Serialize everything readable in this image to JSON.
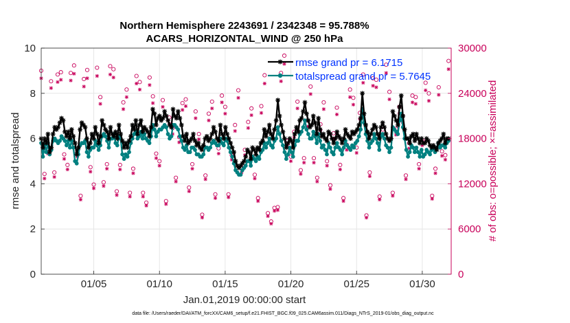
{
  "chart_data": {
    "type": "line",
    "title_line1": "Northern Hemisphere 2243691 / 2342348 = 95.788%",
    "title_line2": "ACARS_HORIZONTAL_WIND @ 250 hPa",
    "xlabel": "Jan.01,2019 00:00:00 start",
    "ylabel_left": "rmse and totalspread",
    "ylabel_right": "# of obs: o=possible; ×=assimilated",
    "xlim": [
      1,
      32.2
    ],
    "ylim_left": [
      0,
      10
    ],
    "ylim_right": [
      0,
      30000
    ],
    "x_ticks": [
      5,
      10,
      15,
      20,
      25,
      30
    ],
    "x_tick_labels": [
      "01/05",
      "01/10",
      "01/15",
      "01/20",
      "01/25",
      "01/30"
    ],
    "yticks_left": [
      0,
      2,
      4,
      6,
      8,
      10
    ],
    "yticks_left_labels": [
      "0",
      "2",
      "4",
      "6",
      "8",
      "10"
    ],
    "yticks_right": [
      0,
      6000,
      12000,
      18000,
      24000,
      30000
    ],
    "yticks_right_labels": [
      "0",
      "6000",
      "12000",
      "18000",
      "24000",
      "30000"
    ],
    "grid": true,
    "legend_position": "top-right",
    "colors": {
      "rmse": "#000000",
      "spread": "#008080",
      "obs": "#c8005a",
      "legend_text": "#0033ff"
    },
    "series": [
      {
        "name": "rmse grand pr = 6.1715",
        "axis": "left",
        "marker": "star",
        "values": [
          6.0,
          5.6,
          6.0,
          5.8,
          6.2,
          5.4,
          5.6,
          6.2,
          6.5,
          6.4,
          6.5,
          6.7,
          6.9,
          6.8,
          6.3,
          6.1,
          6.3,
          6.0,
          6.4,
          6.1,
          5.8,
          5.3,
          5.6,
          6.4,
          6.7,
          6.6,
          6.5,
          6.0,
          5.6,
          5.8,
          6.2,
          6.0,
          6.5,
          6.2,
          5.8,
          6.1,
          6.8,
          6.6,
          6.4,
          6.3,
          6.0,
          6.5,
          6.2,
          6.1,
          6.3,
          6.0,
          6.6,
          6.2,
          5.9,
          5.6,
          5.8,
          5.6,
          5.9,
          6.1,
          6.6,
          6.4,
          6.8,
          6.2,
          6.6,
          6.8,
          6.3,
          6.5,
          6.4,
          6.3,
          6.1,
          6.5,
          7.3,
          7.1,
          6.6,
          6.9,
          7.0,
          6.8,
          6.9,
          7.2,
          7.0,
          6.8,
          6.6,
          6.5,
          7.3,
          7.0,
          6.9,
          7.2,
          6.9,
          6.6,
          6.1,
          5.9,
          6.2,
          5.8,
          5.9,
          6.0,
          6.2,
          5.9,
          5.7,
          5.8,
          5.6,
          5.5,
          5.7,
          6.0,
          6.1,
          5.9,
          6.0,
          6.2,
          6.5,
          6.3,
          6.0,
          5.9,
          6.6,
          6.2,
          6.0,
          6.5,
          6.2,
          6.0,
          5.8,
          5.6,
          5.4,
          5.0,
          4.8,
          4.7,
          4.8,
          4.9,
          5.0,
          5.2,
          5.5,
          5.4,
          5.1,
          5.6,
          5.5,
          5.3,
          5.6,
          5.5,
          5.8,
          5.9,
          6.4,
          6.1,
          6.3,
          6.6,
          6.2,
          6.0,
          6.4,
          6.8,
          7.7,
          7.0,
          6.6,
          6.3,
          6.0,
          5.6,
          5.8,
          6.0,
          5.9,
          5.6,
          6.2,
          6.5,
          6.3,
          6.8,
          6.9,
          7.2,
          7.6,
          7.1,
          6.8,
          6.5,
          6.6,
          7.0,
          6.7,
          6.2,
          6.9,
          6.4,
          6.1,
          6.2,
          6.0,
          5.9,
          6.3,
          6.2,
          6.0,
          5.8,
          6.0,
          6.3,
          6.1,
          6.0,
          5.8,
          6.0,
          6.4,
          6.2,
          6.1,
          6.0,
          6.3,
          6.2,
          6.3,
          6.4,
          6.6,
          6.9,
          8.0,
          7.1,
          6.6,
          6.3,
          6.0,
          6.2,
          6.4,
          6.6,
          6.5,
          6.2,
          6.0,
          6.5,
          6.7,
          6.5,
          6.2,
          6.0,
          5.9,
          6.0,
          7.2,
          7.0,
          6.8,
          6.6,
          7.4,
          7.9,
          7.0,
          6.4,
          6.0,
          6.0,
          5.8,
          6.1,
          6.2,
          5.9,
          6.2,
          6.0,
          5.8,
          6.0,
          5.8,
          5.8,
          6.0,
          5.9,
          5.7,
          5.6,
          5.7,
          5.6,
          5.5,
          5.8,
          5.9,
          6.0,
          6.2,
          5.8,
          6.0,
          6.0
        ]
      },
      {
        "name": "totalspread grand pr = 5.7645",
        "axis": "left",
        "marker": "circle",
        "values": [
          5.8,
          5.2,
          5.7,
          5.4,
          5.8,
          5.3,
          5.5,
          5.9,
          6.0,
          5.9,
          5.8,
          5.9,
          6.1,
          6.0,
          5.9,
          5.7,
          5.9,
          5.6,
          5.9,
          5.6,
          5.0,
          4.9,
          5.3,
          5.7,
          5.8,
          5.8,
          5.9,
          5.4,
          5.2,
          5.5,
          5.6,
          5.6,
          5.9,
          5.7,
          5.5,
          5.7,
          6.1,
          6.2,
          6.1,
          5.9,
          5.6,
          6.0,
          6.0,
          6.2,
          5.8,
          5.7,
          6.1,
          6.0,
          5.3,
          5.1,
          5.3,
          5.2,
          5.4,
          5.8,
          6.0,
          6.2,
          6.3,
          6.0,
          6.1,
          6.3,
          6.0,
          6.2,
          6.0,
          5.9,
          5.8,
          6.1,
          6.6,
          6.4,
          6.1,
          6.3,
          6.4,
          6.4,
          6.5,
          6.6,
          6.5,
          6.2,
          6.0,
          6.1,
          6.6,
          6.6,
          6.5,
          6.4,
          6.1,
          5.9,
          5.6,
          5.5,
          5.7,
          5.4,
          5.4,
          5.6,
          5.6,
          5.5,
          5.3,
          5.3,
          5.2,
          5.2,
          5.3,
          5.6,
          5.6,
          5.5,
          5.6,
          5.8,
          5.9,
          5.8,
          5.7,
          5.7,
          6.0,
          5.8,
          5.7,
          6.0,
          5.9,
          5.6,
          5.4,
          5.2,
          4.9,
          4.6,
          4.5,
          4.4,
          4.4,
          4.6,
          4.7,
          4.8,
          5.0,
          5.0,
          4.8,
          5.2,
          5.1,
          5.0,
          5.2,
          5.1,
          5.4,
          5.5,
          5.8,
          5.6,
          5.8,
          6.0,
          5.7,
          5.6,
          5.9,
          6.0,
          6.5,
          6.2,
          5.9,
          5.7,
          5.4,
          5.1,
          5.3,
          5.6,
          5.4,
          5.2,
          5.7,
          5.9,
          5.9,
          6.2,
          6.3,
          6.5,
          6.8,
          6.4,
          6.2,
          6.0,
          6.0,
          6.3,
          6.1,
          5.8,
          6.2,
          5.9,
          5.6,
          5.7,
          5.5,
          5.3,
          5.8,
          5.6,
          5.4,
          5.3,
          5.6,
          5.8,
          5.6,
          5.5,
          5.3,
          5.6,
          5.9,
          5.7,
          5.6,
          5.5,
          5.7,
          5.6,
          5.8,
          5.9,
          6.1,
          6.4,
          7.3,
          6.7,
          6.2,
          5.9,
          5.6,
          5.8,
          5.9,
          6.2,
          6.0,
          5.8,
          5.5,
          6.1,
          6.2,
          6.0,
          5.7,
          5.6,
          5.4,
          5.6,
          6.5,
          6.4,
          6.3,
          6.2,
          6.8,
          7.1,
          6.5,
          6.0,
          5.5,
          5.2,
          5.4,
          5.7,
          5.6,
          5.4,
          5.6,
          5.4,
          5.2,
          5.5,
          5.2,
          5.3,
          5.5,
          5.4,
          5.3,
          5.5,
          5.6,
          5.4,
          5.6,
          5.8,
          5.6,
          5.7,
          5.7,
          5.6,
          5.8,
          5.9
        ]
      },
      {
        "name": "obs possible",
        "axis": "right",
        "marker": "o",
        "x": [
          1.0,
          1.25,
          1.5,
          1.75,
          2.0,
          2.25,
          2.5,
          2.75,
          3.0,
          3.25,
          3.5,
          3.75,
          4.0,
          4.25,
          4.5,
          4.75,
          5.0,
          5.25,
          5.5,
          5.75,
          6.0,
          6.25,
          6.5,
          6.75,
          7.0,
          7.25,
          7.5,
          7.75,
          8.0,
          8.25,
          8.5,
          8.75,
          9.0,
          9.25,
          9.5,
          9.75,
          10.0,
          10.25,
          10.5,
          10.75,
          11.0,
          11.25,
          11.5,
          11.75,
          12.0,
          12.25,
          12.5,
          12.75,
          13.0,
          13.25,
          13.5,
          13.75,
          14.0,
          14.25,
          14.5,
          14.75,
          15.0,
          15.25,
          15.5,
          15.75,
          16.0,
          16.25,
          16.5,
          16.75,
          17.0,
          17.25,
          17.5,
          17.75,
          18.0,
          18.25,
          18.5,
          18.75,
          19.0,
          19.25,
          19.5,
          19.75,
          20.0,
          20.25,
          20.5,
          20.75,
          21.0,
          21.25,
          21.5,
          21.75,
          22.0,
          22.25,
          22.5,
          22.75,
          23.0,
          23.25,
          23.5,
          23.75,
          24.0,
          24.25,
          24.5,
          24.75,
          25.0,
          25.25,
          25.5,
          25.75,
          26.0,
          26.25,
          26.5,
          26.75,
          27.0,
          27.25,
          27.5,
          27.75,
          28.0,
          28.25,
          28.5,
          28.75,
          29.0,
          29.25,
          29.5,
          29.75,
          30.0,
          30.25,
          30.5,
          30.75,
          31.0,
          31.25,
          31.5,
          31.75,
          32.0
        ],
        "values": [
          27000,
          13300,
          16700,
          25600,
          13500,
          26500,
          26800,
          15900,
          14500,
          26700,
          27700,
          16300,
          10400,
          25900,
          27100,
          14200,
          11900,
          27400,
          23500,
          12200,
          14600,
          27600,
          27200,
          11000,
          14500,
          22800,
          24500,
          10800,
          14000,
          26300,
          25500,
          10800,
          9500,
          26100,
          23600,
          16000,
          15000,
          23100,
          9700,
          20800,
          19400,
          12800,
          18200,
          22700,
          23200,
          11500,
          14600,
          21600,
          18600,
          7900,
          13100,
          21300,
          22900,
          10600,
          16700,
          23700,
          22200,
          10600,
          15800,
          19800,
          24400,
          14100,
          16500,
          20200,
          22000,
          13200,
          10100,
          22300,
          26400,
          8100,
          7000,
          8800,
          8900,
          26700,
          29000,
          17700,
          15600,
          18900,
          22900,
          13800,
          15400,
          20400,
          24900,
          15400,
          12800,
          19900,
          22800,
          15000,
          11800,
          18700,
          22100,
          14500,
          10100,
          17200,
          24500,
          23400,
          16800,
          21400,
          26500,
          7800,
          13500,
          26000,
          25800,
          10300,
          19200,
          27800,
          24200,
          10800,
          19300,
          22200,
          21000,
          13100,
          17400,
          23700,
          23500,
          14600,
          17800,
          25400,
          24000,
          10400,
          14000,
          24800,
          16300,
          15800,
          28300
        ]
      },
      {
        "name": "obs assimilated",
        "axis": "right",
        "marker": "x",
        "x": [
          1.0,
          1.25,
          1.5,
          1.75,
          2.0,
          2.25,
          2.5,
          2.75,
          3.0,
          3.25,
          3.5,
          3.75,
          4.0,
          4.25,
          4.5,
          4.75,
          5.0,
          5.25,
          5.5,
          5.75,
          6.0,
          6.25,
          6.5,
          6.75,
          7.0,
          7.25,
          7.5,
          7.75,
          8.0,
          8.25,
          8.5,
          8.75,
          9.0,
          9.25,
          9.5,
          9.75,
          10.0,
          10.25,
          10.5,
          10.75,
          11.0,
          11.25,
          11.5,
          11.75,
          12.0,
          12.25,
          12.5,
          12.75,
          13.0,
          13.25,
          13.5,
          13.75,
          14.0,
          14.25,
          14.5,
          14.75,
          15.0,
          15.25,
          15.5,
          15.75,
          16.0,
          16.25,
          16.5,
          16.75,
          17.0,
          17.25,
          17.5,
          17.75,
          18.0,
          18.25,
          18.5,
          18.75,
          19.0,
          19.25,
          19.5,
          19.75,
          20.0,
          20.25,
          20.5,
          20.75,
          21.0,
          21.25,
          21.5,
          21.75,
          22.0,
          22.25,
          22.5,
          22.75,
          23.0,
          23.25,
          23.5,
          23.75,
          24.0,
          24.25,
          24.5,
          24.75,
          25.0,
          25.25,
          25.5,
          25.75,
          26.0,
          26.25,
          26.5,
          26.75,
          27.0,
          27.25,
          27.5,
          27.75,
          28.0,
          28.25,
          28.5,
          28.75,
          29.0,
          29.25,
          29.5,
          29.75,
          30.0,
          30.25,
          30.5,
          30.75,
          31.0,
          31.25,
          31.5,
          31.75,
          32.0
        ],
        "values": [
          26000,
          12700,
          16000,
          24700,
          12900,
          25500,
          25800,
          15300,
          13900,
          25700,
          26600,
          15600,
          9900,
          24900,
          26000,
          13600,
          11400,
          26300,
          22600,
          11700,
          14000,
          26500,
          26100,
          10500,
          13900,
          21900,
          23500,
          10300,
          13400,
          25300,
          24500,
          10300,
          9100,
          25100,
          22700,
          15400,
          14400,
          22200,
          9300,
          20000,
          18600,
          12300,
          17500,
          21800,
          22300,
          11000,
          14000,
          20700,
          17900,
          7500,
          12600,
          20400,
          22000,
          10100,
          16000,
          22800,
          21300,
          10200,
          15200,
          19000,
          23400,
          13500,
          15800,
          19400,
          21100,
          12700,
          9700,
          21400,
          25300,
          7700,
          6700,
          8400,
          8500,
          25600,
          27900,
          17000,
          15000,
          18200,
          22000,
          13300,
          14800,
          19600,
          23900,
          14800,
          12300,
          19100,
          21900,
          14400,
          11300,
          18000,
          21200,
          13900,
          9700,
          16500,
          23500,
          22500,
          16100,
          20600,
          25400,
          7500,
          13000,
          25000,
          24800,
          9900,
          18400,
          26700,
          23200,
          10400,
          18500,
          21300,
          20200,
          12600,
          16700,
          22800,
          22600,
          14000,
          17100,
          24400,
          23000,
          10000,
          13400,
          23800,
          15700,
          15200,
          27200
        ]
      }
    ]
  },
  "footer": {
    "data_file": "data file: /Users/raeder/DAI/ATM_forcXX/CAM6_setup/f.e21.FHIST_BGC.f09_025.CAM6assim.011/Diags_NTrS_2019-01/obs_diag_output.nc"
  }
}
